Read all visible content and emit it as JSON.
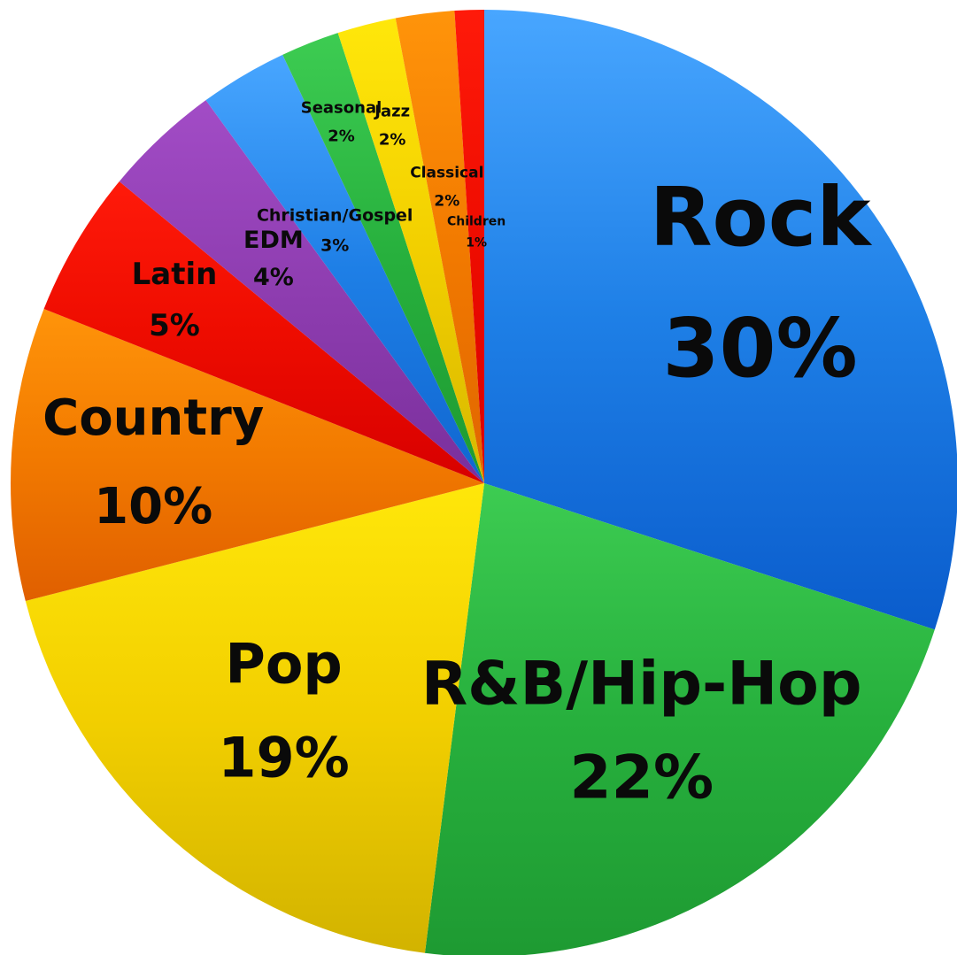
{
  "chart_data": {
    "type": "pie",
    "title": "",
    "unit": "%",
    "start": "12 o'clock",
    "direction": "clockwise",
    "slices": [
      {
        "label": "Rock",
        "value": 30,
        "value_text": "30%",
        "color": "#1e7fe6",
        "light": "#48a6ff",
        "dark": "#0a5ccc"
      },
      {
        "label": "R&B/Hip-Hop",
        "value": 22,
        "value_text": "22%",
        "color": "#27b03d",
        "light": "#3dcc52",
        "dark": "#1e9a32"
      },
      {
        "label": "Pop",
        "value": 19,
        "value_text": "19%",
        "color": "#f2cf00",
        "light": "#ffe70a",
        "dark": "#d2b300"
      },
      {
        "label": "Country",
        "value": 10,
        "value_text": "10%",
        "color": "#f27a00",
        "light": "#ff940a",
        "dark": "#e05f00"
      },
      {
        "label": "Latin",
        "value": 5,
        "value_text": "5%",
        "color": "#ee0c00",
        "light": "#ff1a0a",
        "dark": "#d70000"
      },
      {
        "label": "EDM",
        "value": 4,
        "value_text": "4%",
        "color": "#8e3db0",
        "light": "#a24cc6",
        "dark": "#7a2f9c"
      },
      {
        "label": "Christian/Gospel",
        "value": 3,
        "value_text": "3%",
        "color": "#1e7fe6",
        "light": "#48a6ff",
        "dark": "#1066d0"
      },
      {
        "label": "Seasonal",
        "value": 2,
        "value_text": "2%",
        "color": "#27b03d",
        "light": "#3dcc52",
        "dark": "#1e9a32"
      },
      {
        "label": "Jazz",
        "value": 2,
        "value_text": "2%",
        "color": "#f2cf00",
        "light": "#ffe70a",
        "dark": "#d8b800"
      },
      {
        "label": "Classical",
        "value": 2,
        "value_text": "2%",
        "color": "#f27a00",
        "light": "#ff940a",
        "dark": "#e06500"
      },
      {
        "label": "Children",
        "value": 1,
        "value_text": "1%",
        "color": "#ee0c00",
        "light": "#ff1a0a",
        "dark": "#d70000"
      }
    ]
  }
}
